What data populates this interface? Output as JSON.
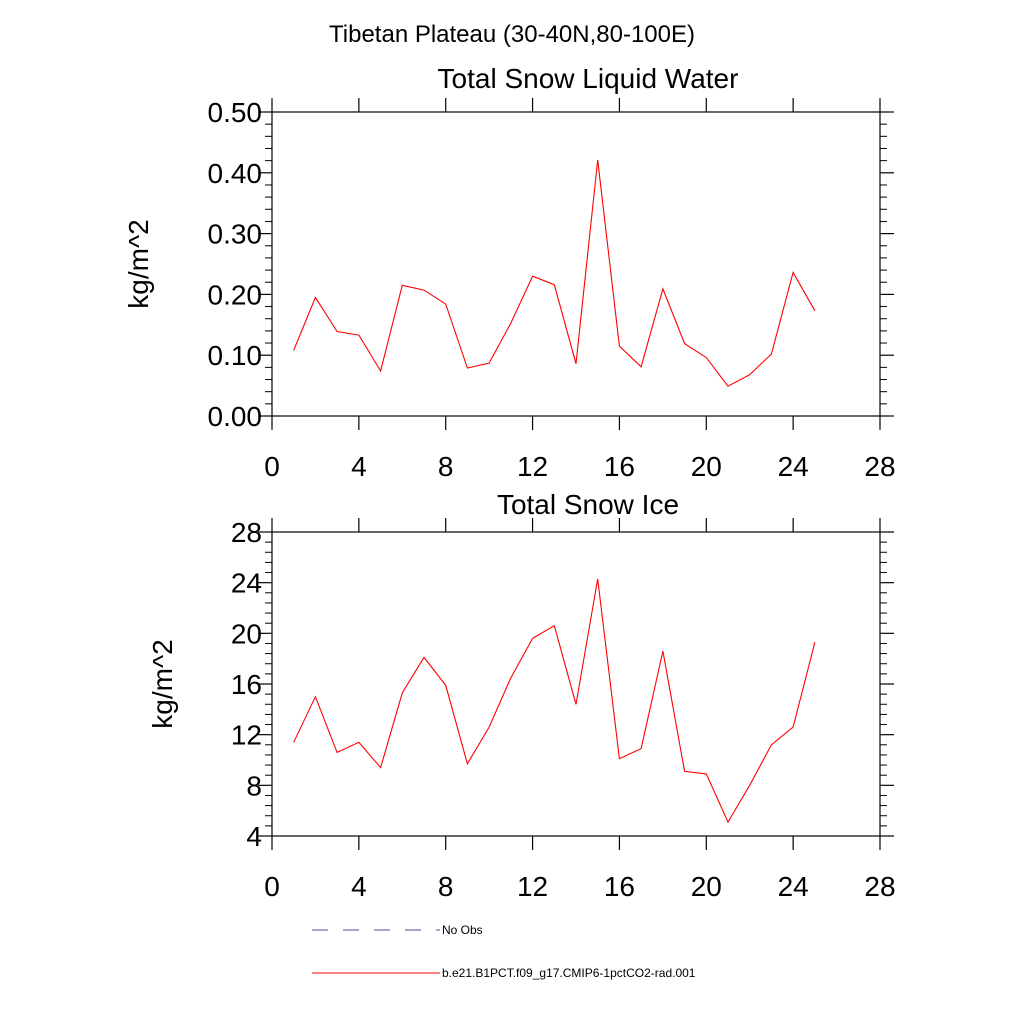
{
  "suptitle": "Tibetan Plateau (30-40N,80-100E)",
  "legend": [
    {
      "label": "No Obs",
      "color": "#4a4a9a",
      "dash": "dashed"
    },
    {
      "label": "b.e21.B1PCT.f09_g17.CMIP6-1pctCO2-rad.001",
      "color": "#ff0000",
      "dash": "solid"
    }
  ],
  "chart_data": [
    {
      "type": "line",
      "title": "Total Snow Liquid Water",
      "xlabel": "",
      "ylabel": "kg/m^2",
      "xlim": [
        0,
        28
      ],
      "ylim": [
        0,
        0.5
      ],
      "xticks": [
        "0",
        "4",
        "8",
        "12",
        "16",
        "20",
        "24",
        "28"
      ],
      "yticks": [
        "0.00",
        "0.10",
        "0.20",
        "0.30",
        "0.40",
        "0.50"
      ],
      "series": [
        {
          "name": "b.e21.B1PCT.f09_g17.CMIP6-1pctCO2-rad.001",
          "color": "#ff0000",
          "x": [
            1,
            2,
            3,
            4,
            5,
            6,
            7,
            8,
            9,
            10,
            11,
            12,
            13,
            14,
            15,
            16,
            17,
            18,
            19,
            20,
            21,
            22,
            23,
            24,
            25
          ],
          "values": [
            0.108,
            0.195,
            0.139,
            0.133,
            0.074,
            0.215,
            0.207,
            0.184,
            0.079,
            0.087,
            0.153,
            0.23,
            0.216,
            0.086,
            0.421,
            0.115,
            0.081,
            0.209,
            0.119,
            0.096,
            0.049,
            0.068,
            0.102,
            0.236,
            0.173
          ]
        }
      ]
    },
    {
      "type": "line",
      "title": "Total Snow Ice",
      "xlabel": "",
      "ylabel": "kg/m^2",
      "xlim": [
        0,
        28
      ],
      "ylim": [
        4,
        28
      ],
      "xticks": [
        "0",
        "4",
        "8",
        "12",
        "16",
        "20",
        "24",
        "28"
      ],
      "yticks": [
        "4",
        "8",
        "12",
        "16",
        "20",
        "24",
        "28"
      ],
      "series": [
        {
          "name": "b.e21.B1PCT.f09_g17.CMIP6-1pctCO2-rad.001",
          "color": "#ff0000",
          "x": [
            1,
            2,
            3,
            4,
            5,
            6,
            7,
            8,
            9,
            10,
            11,
            12,
            13,
            14,
            15,
            16,
            17,
            18,
            19,
            20,
            21,
            22,
            23,
            24,
            25
          ],
          "values": [
            11.4,
            15.0,
            10.6,
            11.4,
            9.4,
            15.3,
            18.1,
            15.9,
            9.7,
            12.6,
            16.5,
            19.6,
            20.6,
            14.4,
            24.3,
            10.1,
            10.9,
            18.6,
            9.1,
            8.9,
            5.1,
            8.0,
            11.2,
            12.6,
            19.3
          ]
        }
      ]
    }
  ]
}
